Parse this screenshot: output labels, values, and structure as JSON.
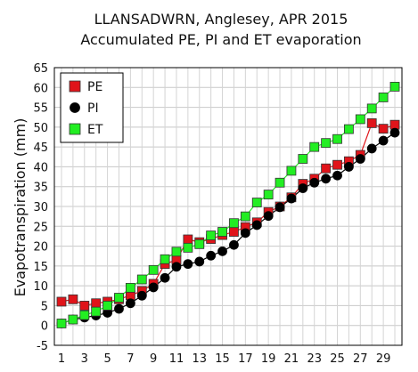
{
  "chart_data": {
    "type": "line",
    "title": "LLANSADWRN, Anglesey, APR 2015",
    "subtitle": "Accumulated PE, PI and ET evaporation",
    "xlabel": "",
    "ylabel": "Evapotranspiration (mm)",
    "ylim": [
      -5,
      65
    ],
    "yticks": [
      -5,
      0,
      5,
      10,
      15,
      20,
      25,
      30,
      35,
      40,
      45,
      50,
      55,
      60,
      65
    ],
    "xlim": [
      1,
      30
    ],
    "xticks": [
      1,
      3,
      5,
      7,
      9,
      11,
      13,
      15,
      17,
      19,
      21,
      23,
      25,
      27,
      29
    ],
    "grid": true,
    "legend": "top-left",
    "x": [
      1,
      2,
      3,
      4,
      5,
      6,
      7,
      8,
      9,
      10,
      11,
      12,
      13,
      14,
      15,
      16,
      17,
      18,
      19,
      20,
      21,
      22,
      23,
      24,
      25,
      26,
      27,
      28,
      29,
      30
    ],
    "series": [
      {
        "name": "PE",
        "color": "#e0141a",
        "marker": "square",
        "values": [
          6.0,
          6.6,
          5.0,
          5.6,
          6.0,
          6.6,
          7.6,
          8.7,
          10.5,
          15.5,
          16.5,
          21.7,
          21.0,
          21.8,
          22.8,
          23.6,
          24.8,
          26.0,
          28.6,
          30.0,
          32.3,
          35.7,
          37.0,
          39.6,
          40.5,
          41.4,
          43.0,
          51.0,
          49.6,
          50.6
        ]
      },
      {
        "name": "PI",
        "color": "#000000",
        "marker": "circle",
        "values": [
          0.5,
          1.5,
          2.0,
          2.5,
          3.2,
          4.2,
          5.6,
          7.5,
          9.6,
          12.0,
          14.8,
          15.5,
          16.1,
          17.6,
          18.7,
          20.3,
          23.3,
          25.3,
          27.6,
          29.8,
          32.0,
          34.6,
          36.0,
          37.0,
          37.8,
          40.0,
          42.0,
          44.6,
          46.6,
          48.6
        ]
      },
      {
        "name": "ET",
        "color": "#22ee22",
        "marker": "square",
        "values": [
          0.5,
          1.5,
          2.6,
          3.5,
          5.0,
          7.0,
          9.5,
          11.6,
          14.0,
          16.7,
          18.6,
          19.6,
          20.5,
          22.7,
          23.6,
          25.8,
          27.5,
          31.0,
          33.0,
          36.0,
          39.0,
          42.0,
          45.0,
          46.0,
          47.0,
          49.5,
          52.0,
          54.7,
          57.5,
          60.2
        ]
      }
    ]
  }
}
